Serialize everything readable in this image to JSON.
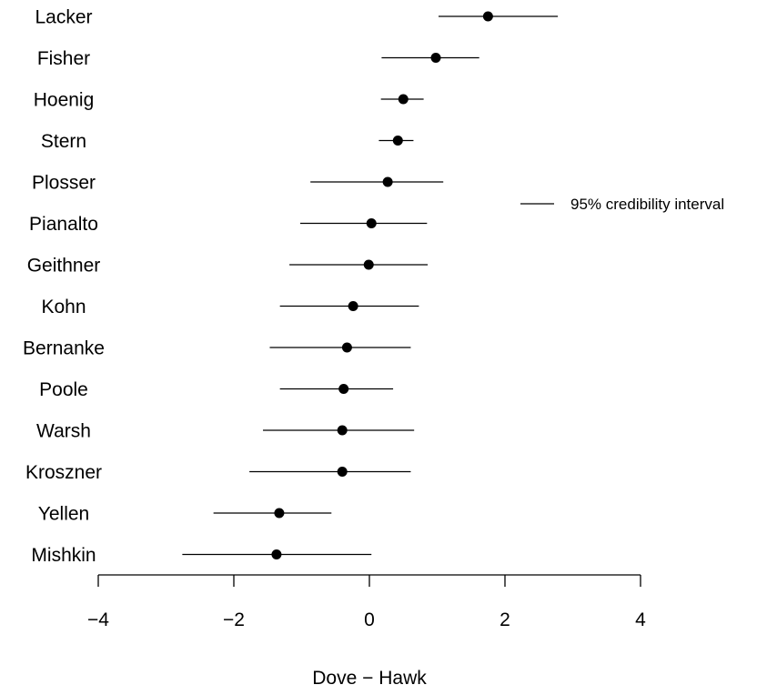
{
  "chart_data": {
    "type": "scatter",
    "xlabel": "Dove − Hawk",
    "xlim": [
      -4,
      4
    ],
    "xticks": [
      -4,
      -2,
      0,
      2,
      4
    ],
    "xtick_labels": [
      "−4",
      "−2",
      "0",
      "2",
      "4"
    ],
    "legend": {
      "placement": "right",
      "label": "95% credibility interval"
    },
    "grid": false,
    "points": [
      {
        "name": "Lacker",
        "estimate": 1.75,
        "lower": 1.02,
        "upper": 2.78
      },
      {
        "name": "Fisher",
        "estimate": 0.98,
        "lower": 0.18,
        "upper": 1.62
      },
      {
        "name": "Hoenig",
        "estimate": 0.5,
        "lower": 0.17,
        "upper": 0.8
      },
      {
        "name": "Stern",
        "estimate": 0.42,
        "lower": 0.14,
        "upper": 0.65
      },
      {
        "name": "Plosser",
        "estimate": 0.27,
        "lower": -0.87,
        "upper": 1.09
      },
      {
        "name": "Pianalto",
        "estimate": 0.03,
        "lower": -1.02,
        "upper": 0.85
      },
      {
        "name": "Geithner",
        "estimate": -0.01,
        "lower": -1.18,
        "upper": 0.86
      },
      {
        "name": "Kohn",
        "estimate": -0.24,
        "lower": -1.32,
        "upper": 0.73
      },
      {
        "name": "Bernanke",
        "estimate": -0.33,
        "lower": -1.47,
        "upper": 0.61
      },
      {
        "name": "Poole",
        "estimate": -0.38,
        "lower": -1.32,
        "upper": 0.35
      },
      {
        "name": "Warsh",
        "estimate": -0.4,
        "lower": -1.57,
        "upper": 0.66
      },
      {
        "name": "Kroszner",
        "estimate": -0.4,
        "lower": -1.77,
        "upper": 0.61
      },
      {
        "name": "Yellen",
        "estimate": -1.33,
        "lower": -2.3,
        "upper": -0.56
      },
      {
        "name": "Mishkin",
        "estimate": -1.37,
        "lower": -2.76,
        "upper": 0.03
      }
    ]
  }
}
